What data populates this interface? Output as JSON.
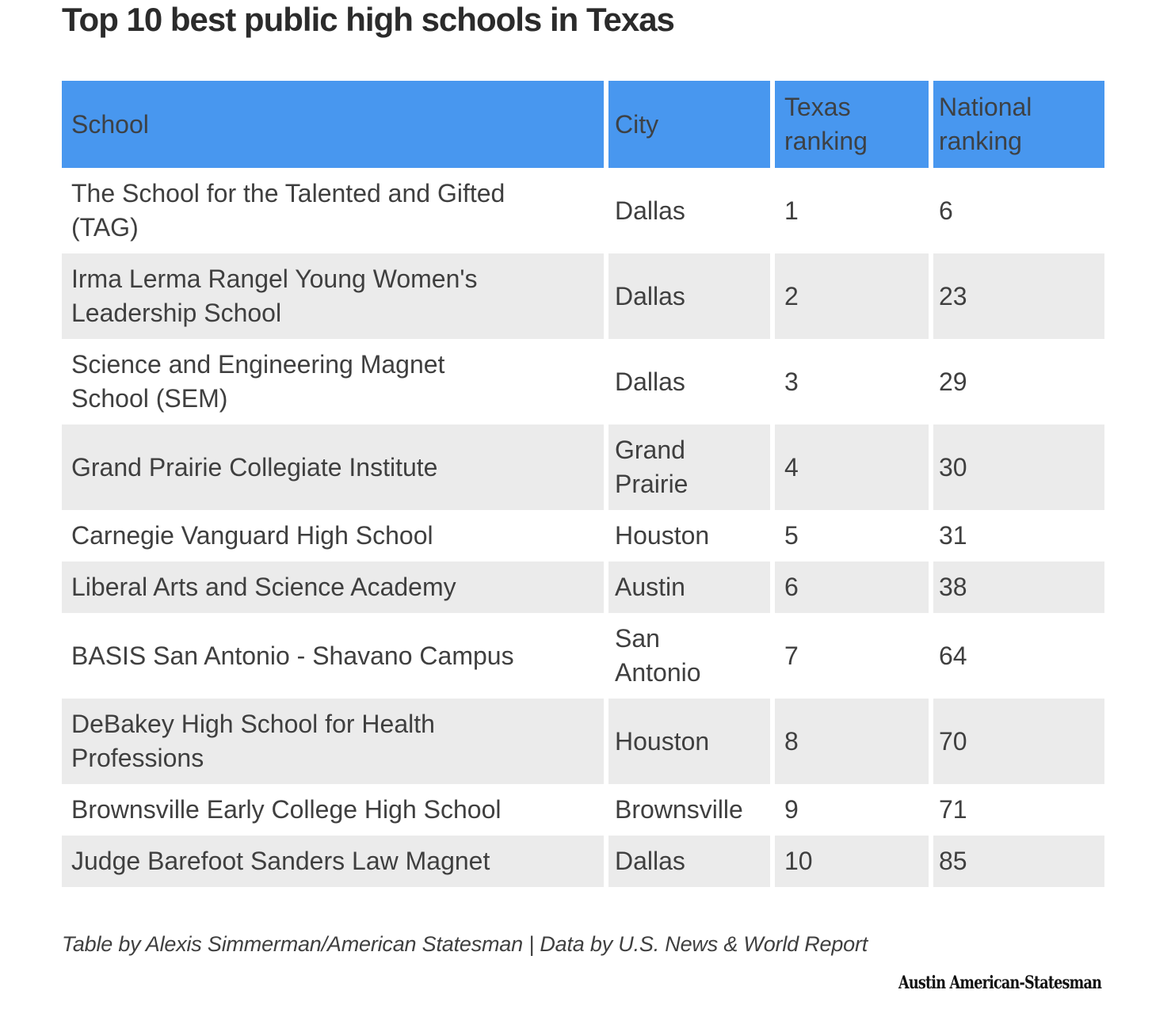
{
  "title": "Top 10 best public high schools in Texas",
  "colors": {
    "header_bg": "#4897ef",
    "row_alt_bg": "#ebebeb",
    "text": "#3f3f3f",
    "title": "#2b2b2b"
  },
  "table": {
    "columns": [
      {
        "label": "School"
      },
      {
        "label": "City"
      },
      {
        "label": "Texas\nranking"
      },
      {
        "label": "National\nranking"
      }
    ],
    "rows": [
      {
        "school": "The School for the Talented and Gifted\n(TAG)",
        "city": "Dallas",
        "texas_ranking": "1",
        "national_ranking": "6"
      },
      {
        "school": "Irma Lerma Rangel Young Women's\nLeadership School",
        "city": "Dallas",
        "texas_ranking": "2",
        "national_ranking": "23"
      },
      {
        "school": "Science and Engineering Magnet\nSchool (SEM)",
        "city": "Dallas",
        "texas_ranking": "3",
        "national_ranking": "29"
      },
      {
        "school": "Grand Prairie Collegiate Institute",
        "city": "Grand\nPrairie",
        "texas_ranking": "4",
        "national_ranking": "30"
      },
      {
        "school": "Carnegie Vanguard High School",
        "city": "Houston",
        "texas_ranking": "5",
        "national_ranking": "31"
      },
      {
        "school": "Liberal Arts and Science Academy",
        "city": "Austin",
        "texas_ranking": "6",
        "national_ranking": "38"
      },
      {
        "school": "BASIS San Antonio - Shavano Campus",
        "city": "San\nAntonio",
        "texas_ranking": "7",
        "national_ranking": "64"
      },
      {
        "school": "DeBakey High School for Health\nProfessions",
        "city": "Houston",
        "texas_ranking": "8",
        "national_ranking": "70"
      },
      {
        "school": "Brownsville Early College High School",
        "city": "Brownsville",
        "texas_ranking": "9",
        "national_ranking": "71"
      },
      {
        "school": "Judge Barefoot Sanders Law Magnet",
        "city": "Dallas",
        "texas_ranking": "10",
        "national_ranking": "85"
      }
    ]
  },
  "chart_data": {
    "type": "table",
    "title": "Top 10 best public high schools in Texas",
    "columns": [
      "School",
      "City",
      "Texas ranking",
      "National ranking"
    ],
    "rows": [
      [
        "The School for the Talented and Gifted (TAG)",
        "Dallas",
        1,
        6
      ],
      [
        "Irma Lerma Rangel Young Women's Leadership School",
        "Dallas",
        2,
        23
      ],
      [
        "Science and Engineering Magnet School (SEM)",
        "Dallas",
        3,
        29
      ],
      [
        "Grand Prairie Collegiate Institute",
        "Grand Prairie",
        4,
        30
      ],
      [
        "Carnegie Vanguard High School",
        "Houston",
        5,
        31
      ],
      [
        "Liberal Arts and Science Academy",
        "Austin",
        6,
        38
      ],
      [
        "BASIS San Antonio - Shavano Campus",
        "San Antonio",
        7,
        64
      ],
      [
        "DeBakey High School for Health Professions",
        "Houston",
        8,
        70
      ],
      [
        "Brownsville Early College High School",
        "Brownsville",
        9,
        71
      ],
      [
        "Judge Barefoot Sanders Law Magnet",
        "Dallas",
        10,
        85
      ]
    ]
  },
  "footer": {
    "credit": "Table by Alexis Simmerman/American Statesman | Data by U.S. News & World Report"
  },
  "branding": {
    "logo_text": "Austin American-Statesman"
  }
}
